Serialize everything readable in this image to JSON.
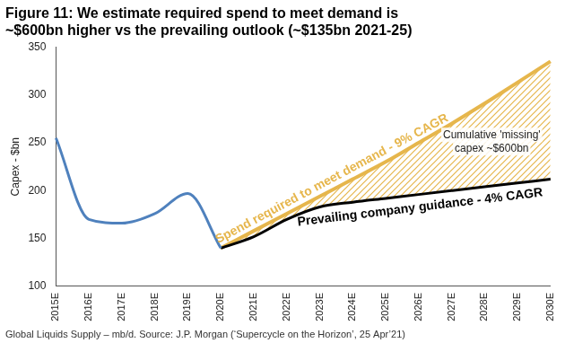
{
  "chart_data": {
    "type": "line",
    "title": [
      "Figure 11: We estimate required spend to meet demand is",
      "~$600bn higher vs the prevailing outlook (~$135bn 2021-25)"
    ],
    "y_label": "Capex - $bn",
    "categories": [
      "2015E",
      "2016E",
      "2017E",
      "2018E",
      "2019E",
      "2020E",
      "2021E",
      "2022E",
      "2023E",
      "2024E",
      "2025E",
      "2026E",
      "2027E",
      "2028E",
      "2029E",
      "2030E"
    ],
    "series": [
      {
        "color": "#4f81bd",
        "values": [
          255,
          170,
          166,
          176,
          197,
          140,
          null,
          null,
          null,
          null,
          null,
          null,
          null,
          null,
          null,
          null
        ]
      },
      {
        "name": "Spend required to meet demand - 9% CAGR",
        "color": "#e6b64c",
        "values": [
          null,
          null,
          null,
          null,
          null,
          140,
          158,
          176,
          194,
          212,
          230,
          250,
          270,
          291,
          313,
          335
        ]
      },
      {
        "name": "Prevailing company guidance - 4% CAGR",
        "color": "#000000",
        "values": [
          null,
          null,
          null,
          null,
          null,
          140,
          152,
          170,
          183,
          188,
          192,
          196,
          200,
          204,
          208,
          212
        ]
      }
    ],
    "annotations": [
      [
        "Cumulative 'missing'",
        "capex ~$600bn"
      ]
    ],
    "source": "Global Liquids Supply – mb/d. Source: J.P. Morgan (‘Supercycle on the Horizon’, 25 Apr’21)",
    "ylim": [
      100,
      350
    ],
    "yticks": [
      100,
      150,
      200,
      250,
      300,
      350
    ],
    "grid": false
  }
}
